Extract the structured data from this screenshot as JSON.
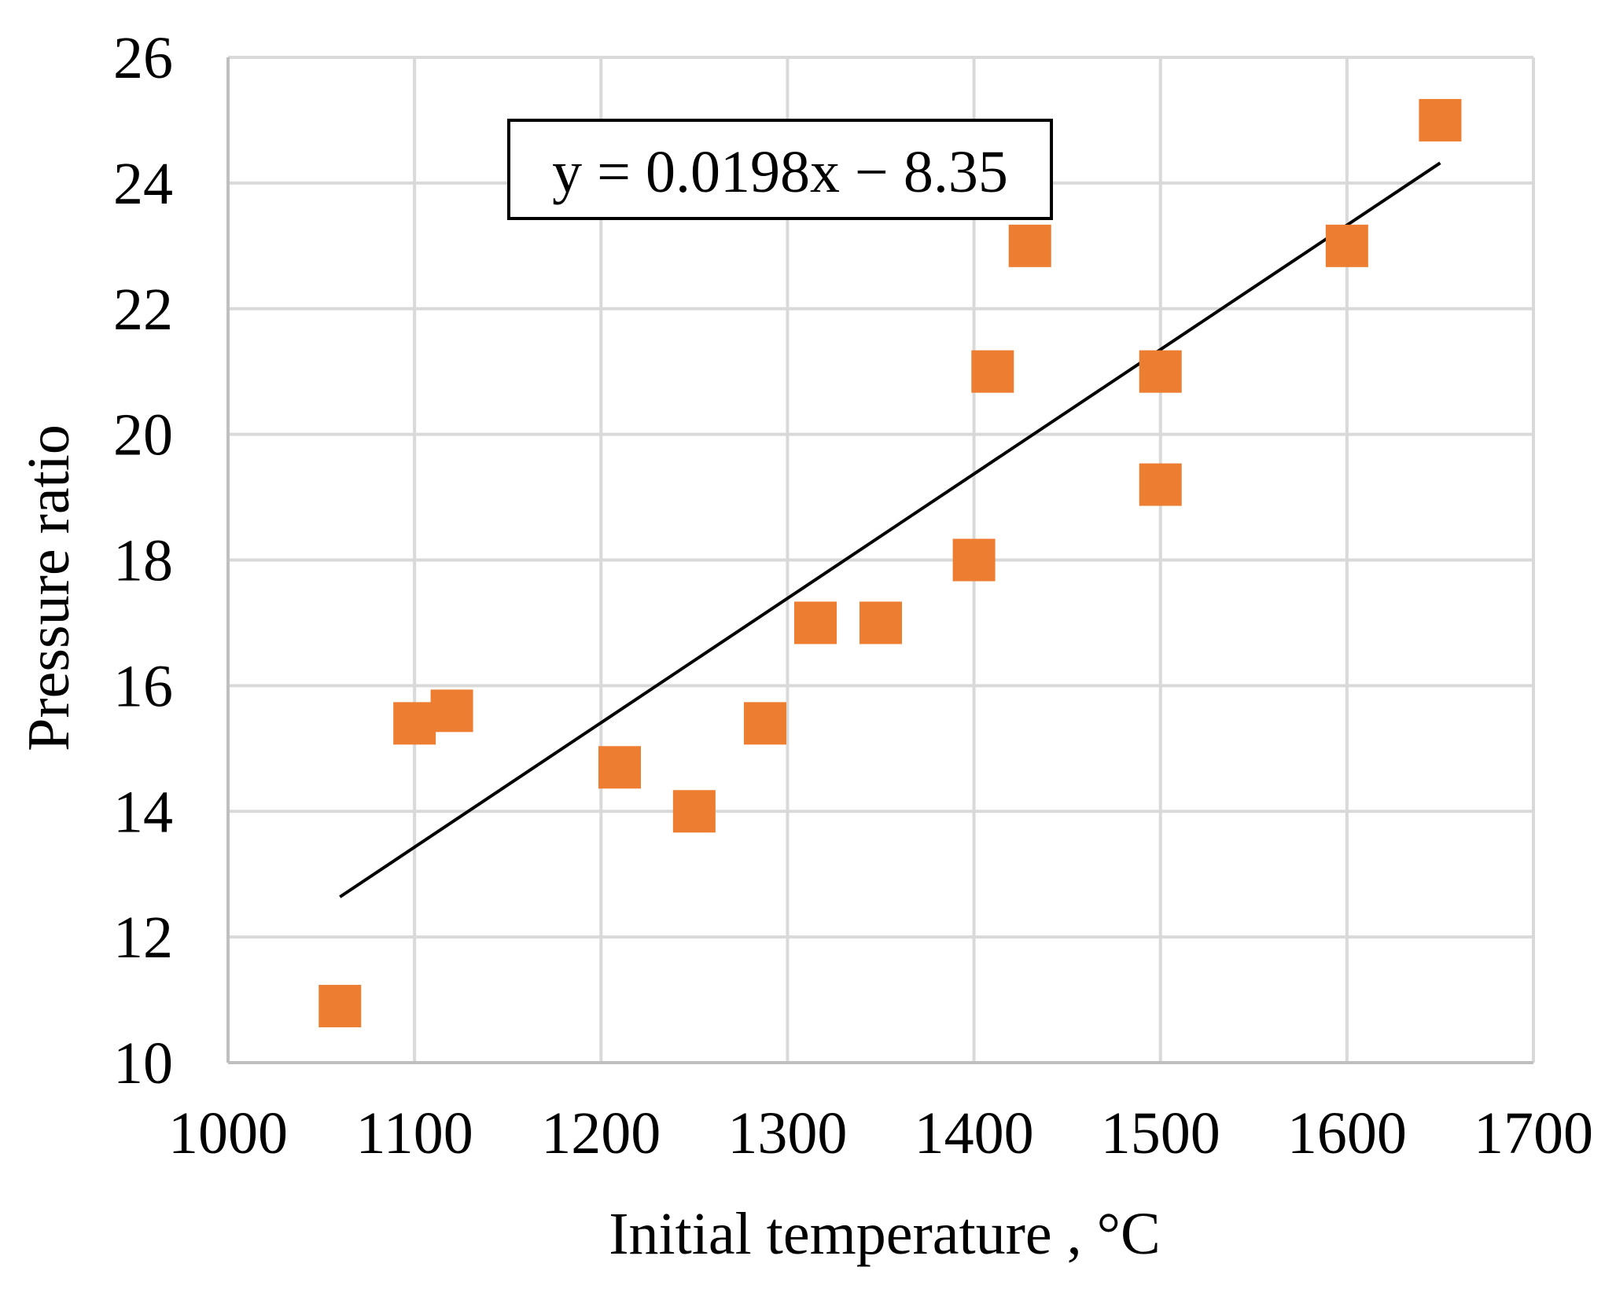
{
  "chart_data": {
    "type": "scatter",
    "title": "",
    "xlabel": "Initial temperature , °C",
    "ylabel": "Pressure ratio",
    "xlim": [
      1000,
      1700
    ],
    "ylim": [
      10,
      26
    ],
    "x_ticks": [
      1000,
      1100,
      1200,
      1300,
      1400,
      1500,
      1600,
      1700
    ],
    "y_ticks": [
      10,
      12,
      14,
      16,
      18,
      20,
      22,
      24,
      26
    ],
    "grid": true,
    "series": [
      {
        "name": "Pressure ratio",
        "marker": "square",
        "color": "#ED7D31",
        "points": [
          {
            "x": 1060,
            "y": 10.9
          },
          {
            "x": 1100,
            "y": 15.4
          },
          {
            "x": 1120,
            "y": 15.6
          },
          {
            "x": 1210,
            "y": 14.7
          },
          {
            "x": 1250,
            "y": 14.0
          },
          {
            "x": 1288,
            "y": 15.4
          },
          {
            "x": 1315,
            "y": 17.0
          },
          {
            "x": 1350,
            "y": 17.0
          },
          {
            "x": 1400,
            "y": 18.0
          },
          {
            "x": 1410,
            "y": 21.0
          },
          {
            "x": 1430,
            "y": 23.0
          },
          {
            "x": 1500,
            "y": 21.0
          },
          {
            "x": 1500,
            "y": 19.2
          },
          {
            "x": 1600,
            "y": 23.0
          },
          {
            "x": 1650,
            "y": 25.0
          }
        ]
      }
    ],
    "trendline": {
      "type": "linear",
      "slope": 0.0198,
      "intercept": -8.35,
      "x_range": [
        1060,
        1650
      ],
      "color": "#000000",
      "equation_label": "y = 0.0198x − 8.35",
      "label_position": "top-center"
    },
    "grid_color": "#D9D9D9",
    "axis_color": "#BFBFBF"
  }
}
